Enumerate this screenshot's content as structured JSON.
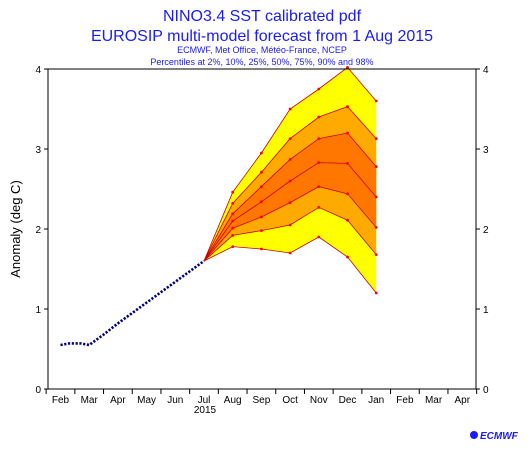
{
  "chart_data": {
    "type": "area",
    "title": "NINO3.4 SST calibrated pdf",
    "subtitle": "EUROSIP multi-model forecast from 1 Aug 2015",
    "subtitle2": "ECMWF, Met Office, Météo-France, NCEP",
    "subtitle3": "Percentiles at 2%, 10%, 25%, 50%, 75%, 90% and 98%",
    "ylabel": "Anomaly (deg C)",
    "year_label": "2015",
    "ylim": [
      0,
      4
    ],
    "yticks": [
      0,
      1,
      2,
      3,
      4
    ],
    "x_ticks": [
      "Feb",
      "Mar",
      "Apr",
      "May",
      "Jun",
      "Jul",
      "Aug",
      "Sep",
      "Oct",
      "Nov",
      "Dec",
      "Jan",
      "Feb",
      "Mar",
      "Apr"
    ],
    "observed": {
      "x": [
        0.0,
        0.3,
        0.7,
        1.0,
        1.5,
        2.0,
        3.0,
        4.0,
        5.0
      ],
      "y": [
        0.55,
        0.57,
        0.57,
        0.55,
        0.68,
        0.82,
        1.08,
        1.34,
        1.6
      ]
    },
    "forecast_x": [
      5.0,
      6.0,
      7.0,
      8.0,
      9.0,
      10.0,
      11.0
    ],
    "percentiles": [
      {
        "name": "2%",
        "values": [
          1.6,
          1.78,
          1.75,
          1.7,
          1.9,
          1.65,
          1.2
        ]
      },
      {
        "name": "10%",
        "values": [
          1.6,
          1.92,
          1.98,
          2.05,
          2.27,
          2.11,
          1.68
        ]
      },
      {
        "name": "25%",
        "values": [
          1.6,
          2.01,
          2.15,
          2.33,
          2.53,
          2.44,
          2.02
        ]
      },
      {
        "name": "50%",
        "values": [
          1.6,
          2.1,
          2.34,
          2.6,
          2.83,
          2.82,
          2.4
        ]
      },
      {
        "name": "75%",
        "values": [
          1.6,
          2.19,
          2.53,
          2.87,
          3.13,
          3.2,
          2.78
        ]
      },
      {
        "name": "90%",
        "values": [
          1.6,
          2.32,
          2.71,
          3.13,
          3.4,
          3.53,
          3.13
        ]
      },
      {
        "name": "98%",
        "values": [
          1.6,
          2.46,
          2.95,
          3.5,
          3.75,
          4.02,
          3.6
        ]
      }
    ],
    "colors": {
      "outer": "#ffff00",
      "middle": "#ffaa00",
      "inner": "#ff7700",
      "line": "#cc0000",
      "dot": "#ff0000",
      "observed": "#000080",
      "axis": "#000000"
    }
  },
  "logo": {
    "text": "ECMWF"
  }
}
